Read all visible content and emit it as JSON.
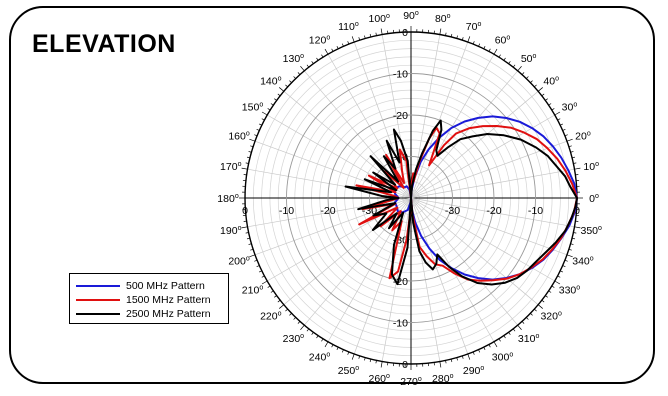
{
  "title": "ELEVATION",
  "chart_data": {
    "type": "polar-line",
    "title": "ELEVATION",
    "radial_axis": {
      "unit": "dB",
      "range": [
        -40,
        0
      ],
      "ring_labels": [
        "0",
        "-10",
        "-20",
        "-30"
      ]
    },
    "angle_labels": [
      "0",
      "10",
      "20",
      "30",
      "40",
      "50",
      "60",
      "70",
      "80",
      "90",
      "100",
      "110",
      "120",
      "130",
      "140",
      "150",
      "160",
      "170",
      "180",
      "190",
      "200",
      "210",
      "220",
      "230",
      "240",
      "250",
      "260",
      "270",
      "280",
      "290",
      "300",
      "310",
      "320",
      "330",
      "340",
      "350"
    ],
    "grid": true,
    "legend_position": "bottom-left",
    "series": [
      {
        "name": "500 MHz Pattern",
        "color": "#1a1ad8",
        "points": [
          [
            0,
            0
          ],
          [
            5,
            -0.5
          ],
          [
            10,
            -1.5
          ],
          [
            15,
            -2.5
          ],
          [
            20,
            -3.6
          ],
          [
            25,
            -4.8
          ],
          [
            30,
            -6.3
          ],
          [
            35,
            -8
          ],
          [
            40,
            -10
          ],
          [
            45,
            -12.2
          ],
          [
            50,
            -14.8
          ],
          [
            55,
            -17.5
          ],
          [
            60,
            -20.5
          ],
          [
            65,
            -24
          ],
          [
            70,
            -27.5
          ],
          [
            75,
            -31
          ],
          [
            80,
            -35
          ],
          [
            85,
            -38
          ],
          [
            90,
            -40
          ],
          [
            100,
            -38
          ],
          [
            110,
            -37
          ],
          [
            120,
            -37
          ],
          [
            135,
            -36
          ],
          [
            150,
            -35.5
          ],
          [
            165,
            -36
          ],
          [
            180,
            -37
          ],
          [
            195,
            -36
          ],
          [
            210,
            -36
          ],
          [
            225,
            -35.5
          ],
          [
            240,
            -36
          ],
          [
            255,
            -37
          ],
          [
            265,
            -39
          ],
          [
            270,
            -40
          ],
          [
            275,
            -37
          ],
          [
            280,
            -34
          ],
          [
            285,
            -30.5
          ],
          [
            290,
            -27
          ],
          [
            295,
            -23.5
          ],
          [
            300,
            -20.5
          ],
          [
            305,
            -17.5
          ],
          [
            310,
            -14.8
          ],
          [
            315,
            -12.2
          ],
          [
            320,
            -10
          ],
          [
            325,
            -8
          ],
          [
            330,
            -6.3
          ],
          [
            335,
            -4.8
          ],
          [
            340,
            -3.6
          ],
          [
            345,
            -2.5
          ],
          [
            350,
            -1.3
          ],
          [
            355,
            -0.4
          ],
          [
            360,
            0
          ]
        ]
      },
      {
        "name": "1500 MHz Pattern",
        "color": "#e01010",
        "points": [
          [
            0,
            0
          ],
          [
            5,
            -1
          ],
          [
            10,
            -2.2
          ],
          [
            15,
            -3.5
          ],
          [
            20,
            -5
          ],
          [
            25,
            -6.5
          ],
          [
            30,
            -8.5
          ],
          [
            35,
            -10.5
          ],
          [
            40,
            -13
          ],
          [
            45,
            -15.5
          ],
          [
            50,
            -18
          ],
          [
            55,
            -21
          ],
          [
            58,
            -25
          ],
          [
            61,
            -31
          ],
          [
            66,
            -23
          ],
          [
            70,
            -22
          ],
          [
            73,
            -25
          ],
          [
            77,
            -31
          ],
          [
            81,
            -36
          ],
          [
            85,
            -34
          ],
          [
            88,
            -37
          ],
          [
            90,
            -40
          ],
          [
            97,
            -31
          ],
          [
            103,
            -28
          ],
          [
            108,
            -33
          ],
          [
            115,
            -36
          ],
          [
            120,
            -28
          ],
          [
            126,
            -37
          ],
          [
            135,
            -31
          ],
          [
            145,
            -36
          ],
          [
            152,
            -28.5
          ],
          [
            160,
            -36
          ],
          [
            167,
            -26.5
          ],
          [
            173,
            -36
          ],
          [
            180,
            -37
          ],
          [
            187,
            -35
          ],
          [
            193,
            -28
          ],
          [
            200,
            -36
          ],
          [
            207,
            -26
          ],
          [
            215,
            -36
          ],
          [
            223,
            -30
          ],
          [
            232,
            -36
          ],
          [
            240,
            -31
          ],
          [
            248,
            -34
          ],
          [
            255,
            -20
          ],
          [
            260,
            -22
          ],
          [
            264,
            -30
          ],
          [
            268,
            -37
          ],
          [
            270,
            -40
          ],
          [
            275,
            -36
          ],
          [
            280,
            -28
          ],
          [
            285,
            -25.5
          ],
          [
            290,
            -23
          ],
          [
            295,
            -22
          ],
          [
            300,
            -19
          ],
          [
            305,
            -16
          ],
          [
            310,
            -14
          ],
          [
            315,
            -12
          ],
          [
            320,
            -9.8
          ],
          [
            325,
            -8
          ],
          [
            330,
            -6.5
          ],
          [
            335,
            -5
          ],
          [
            340,
            -3.8
          ],
          [
            345,
            -2.6
          ],
          [
            350,
            -1.6
          ],
          [
            355,
            -0.6
          ],
          [
            360,
            0
          ]
        ]
      },
      {
        "name": "2500 MHz Pattern",
        "color": "#000000",
        "points": [
          [
            0,
            0
          ],
          [
            4,
            -1.5
          ],
          [
            8,
            -2.5
          ],
          [
            12,
            -4
          ],
          [
            17,
            -5.5
          ],
          [
            22,
            -7.5
          ],
          [
            28,
            -10
          ],
          [
            34,
            -13
          ],
          [
            40,
            -16
          ],
          [
            45,
            -19
          ],
          [
            50,
            -21.5
          ],
          [
            54,
            -25
          ],
          [
            58,
            -28
          ],
          [
            62,
            -27
          ],
          [
            66,
            -22
          ],
          [
            69,
            -20
          ],
          [
            72,
            -23
          ],
          [
            76,
            -29
          ],
          [
            80,
            -33
          ],
          [
            85,
            -37
          ],
          [
            90,
            -40
          ],
          [
            95,
            -31
          ],
          [
            100,
            -26
          ],
          [
            104,
            -23
          ],
          [
            108,
            -31
          ],
          [
            113,
            -25
          ],
          [
            118,
            -32
          ],
          [
            123,
            -28
          ],
          [
            128,
            -35
          ],
          [
            134,
            -26
          ],
          [
            140,
            -35
          ],
          [
            146,
            -29
          ],
          [
            152,
            -36
          ],
          [
            158,
            -28
          ],
          [
            164,
            -35
          ],
          [
            170,
            -24
          ],
          [
            176,
            -33
          ],
          [
            180,
            -37
          ],
          [
            185,
            -34
          ],
          [
            192,
            -27
          ],
          [
            198,
            -36
          ],
          [
            205,
            -30
          ],
          [
            212,
            -33
          ],
          [
            220,
            -28
          ],
          [
            227,
            -35
          ],
          [
            234,
            -31
          ],
          [
            242,
            -36
          ],
          [
            250,
            -28
          ],
          [
            256,
            -21
          ],
          [
            261,
            -19
          ],
          [
            266,
            -28
          ],
          [
            270,
            -40
          ],
          [
            275,
            -34
          ],
          [
            279,
            -27
          ],
          [
            283,
            -24
          ],
          [
            287,
            -22
          ],
          [
            291,
            -23
          ],
          [
            295,
            -25
          ],
          [
            299,
            -21
          ],
          [
            303,
            -17.5
          ],
          [
            308,
            -14
          ],
          [
            313,
            -11.5
          ],
          [
            318,
            -9.5
          ],
          [
            323,
            -8
          ],
          [
            328,
            -7
          ],
          [
            333,
            -6.2
          ],
          [
            338,
            -5
          ],
          [
            343,
            -3.5
          ],
          [
            348,
            -2
          ],
          [
            353,
            -1
          ],
          [
            357,
            -0.3
          ],
          [
            360,
            0
          ]
        ]
      }
    ]
  }
}
